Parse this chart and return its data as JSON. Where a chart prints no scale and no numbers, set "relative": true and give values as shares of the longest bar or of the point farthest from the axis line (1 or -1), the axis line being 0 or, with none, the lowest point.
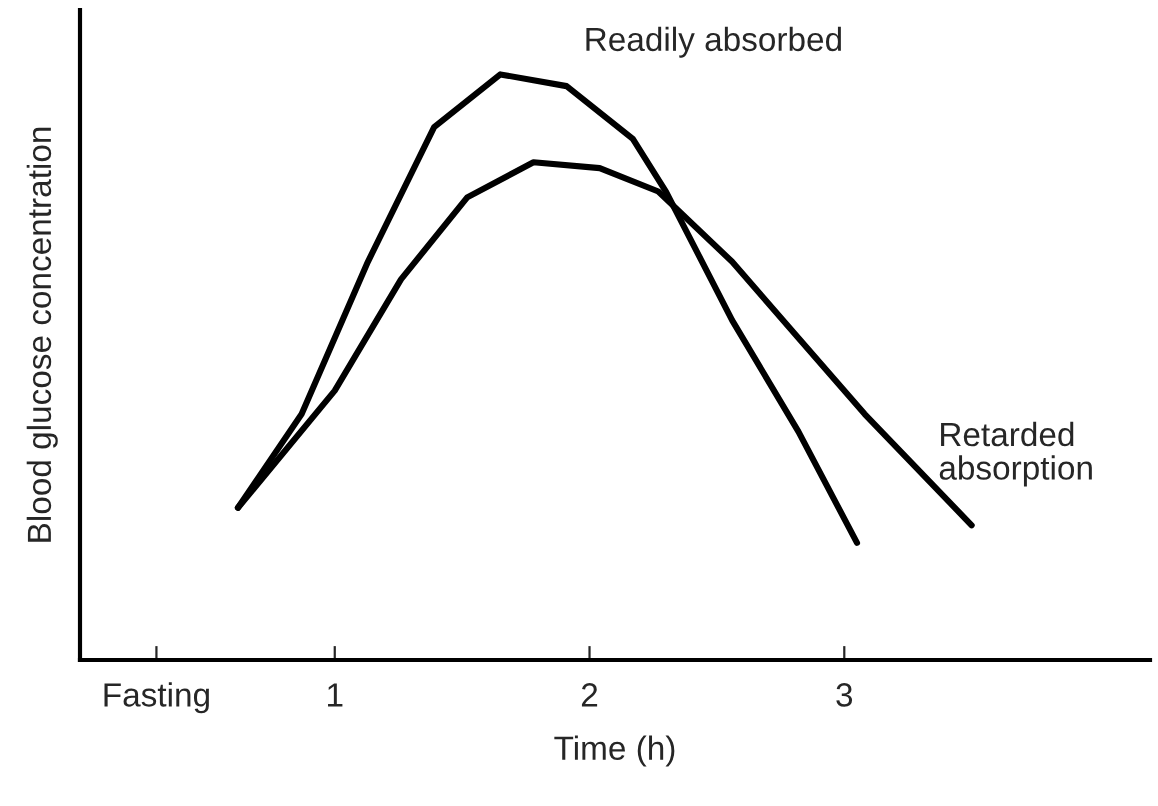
{
  "chart_data": {
    "type": "line",
    "relative": true,
    "xlabel": "Time (h)",
    "ylabel": "Blood glucose concentration",
    "xlim": [
      0,
      4.2
    ],
    "xticks": [
      {
        "value": 0.3,
        "label": "Fasting"
      },
      1,
      2,
      3
    ],
    "grid": false,
    "legend": false,
    "marker": "none",
    "line_style": "solid",
    "series": [
      {
        "name": "Readily absorbed",
        "color": "#000000",
        "x": [
          0.62,
          0.87,
          1.13,
          1.39,
          1.65,
          1.91,
          2.17,
          2.3,
          2.56,
          2.82,
          3.05
        ],
        "values": [
          0.26,
          0.42,
          0.68,
          0.91,
          1.0,
          0.98,
          0.89,
          0.8,
          0.58,
          0.39,
          0.2
        ]
      },
      {
        "name": "Retarded\nabsorption",
        "color": "#000000",
        "x": [
          0.62,
          1.0,
          1.26,
          1.52,
          1.78,
          2.04,
          2.27,
          2.56,
          2.82,
          3.08,
          3.5
        ],
        "values": [
          0.26,
          0.46,
          0.65,
          0.79,
          0.85,
          0.84,
          0.8,
          0.68,
          0.55,
          0.42,
          0.23
        ]
      }
    ]
  }
}
